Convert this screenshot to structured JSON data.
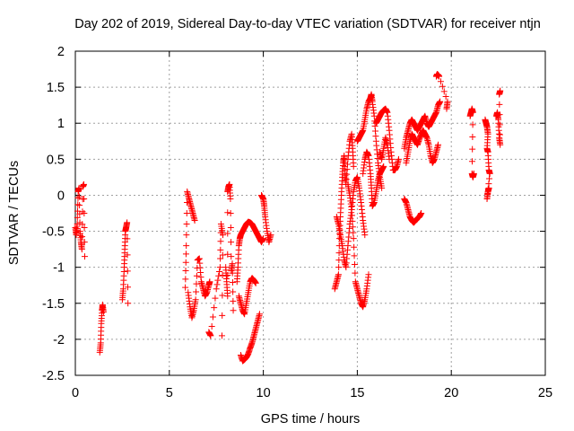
{
  "chart_data": {
    "type": "scatter",
    "title": "Day 202 of 2019, Sidereal Day-to-day VTEC variation (SDTVAR) for receiver ntjn",
    "xlabel": "GPS time / hours",
    "ylabel": "SDTVAR / TECUs",
    "xlim": [
      0,
      25
    ],
    "ylim": [
      -2.5,
      2
    ],
    "xticks": [
      "0",
      "5",
      "10",
      "15",
      "20",
      "25"
    ],
    "yticks": [
      "-2.5",
      "-2",
      "-1.5",
      "-1",
      "-0.5",
      "0",
      "0.5",
      "1",
      "1.5",
      "2"
    ],
    "grid": true,
    "marker": "plus",
    "color": "#ff0000",
    "segments": [
      [
        [
          0.0,
          -0.45
        ],
        [
          0.05,
          -0.55
        ],
        [
          0.1,
          -0.4
        ],
        [
          0.15,
          0.05
        ],
        [
          0.2,
          0.1
        ],
        [
          0.25,
          -0.5
        ],
        [
          0.3,
          -0.65
        ],
        [
          0.35,
          -0.75
        ],
        [
          0.4,
          0.12
        ],
        [
          0.45,
          0.15
        ],
        [
          0.5,
          -0.85
        ]
      ],
      [
        [
          1.3,
          -2.18
        ],
        [
          1.35,
          -2.05
        ],
        [
          1.38,
          -1.78
        ],
        [
          1.42,
          -1.6
        ],
        [
          1.45,
          -1.52
        ],
        [
          1.5,
          -1.62
        ]
      ],
      [
        [
          2.5,
          -1.45
        ],
        [
          2.55,
          -1.3
        ],
        [
          2.6,
          -1.0
        ],
        [
          2.63,
          -0.75
        ],
        [
          2.66,
          -0.5
        ],
        [
          2.7,
          -0.45
        ],
        [
          2.75,
          -0.38
        ],
        [
          2.8,
          -1.5
        ]
      ],
      [
        [
          5.85,
          -1.28
        ],
        [
          5.9,
          -0.7
        ],
        [
          5.95,
          0.05
        ],
        [
          6.05,
          -0.05
        ],
        [
          6.15,
          -0.15
        ],
        [
          6.25,
          -0.25
        ],
        [
          6.35,
          -0.35
        ]
      ],
      [
        [
          6.0,
          -1.35
        ],
        [
          6.1,
          -1.55
        ],
        [
          6.2,
          -1.7
        ],
        [
          6.3,
          -1.6
        ],
        [
          6.4,
          -1.45
        ],
        [
          6.5,
          -0.9
        ],
        [
          6.6,
          -0.88
        ],
        [
          6.7,
          -1.2
        ],
        [
          6.8,
          -1.3
        ],
        [
          6.9,
          -1.4
        ],
        [
          7.0,
          -1.35
        ],
        [
          7.1,
          -1.25
        ],
        [
          7.15,
          -1.2
        ]
      ],
      [
        [
          7.1,
          -1.9
        ],
        [
          7.2,
          -1.95
        ],
        [
          7.5,
          -1.3
        ],
        [
          7.7,
          -1.0
        ],
        [
          7.75,
          -0.4
        ],
        [
          7.85,
          -0.55
        ],
        [
          7.8,
          -1.95
        ]
      ],
      [
        [
          8.0,
          -1.0
        ],
        [
          8.05,
          -1.2
        ],
        [
          8.1,
          -1.4
        ],
        [
          8.1,
          0.05
        ],
        [
          8.15,
          0.12
        ],
        [
          8.2,
          0.15
        ],
        [
          8.25,
          -0.05
        ],
        [
          8.3,
          -1.05
        ],
        [
          8.35,
          -0.95
        ],
        [
          8.4,
          -1.6
        ]
      ],
      [
        [
          8.6,
          -1.2
        ],
        [
          8.65,
          -1.0
        ],
        [
          8.7,
          -0.7
        ],
        [
          8.75,
          -0.6
        ],
        [
          8.8,
          -0.55
        ],
        [
          8.9,
          -0.5
        ],
        [
          9.0,
          -0.45
        ],
        [
          9.1,
          -0.4
        ],
        [
          9.2,
          -0.37
        ],
        [
          9.3,
          -0.38
        ],
        [
          9.4,
          -0.4
        ],
        [
          9.5,
          -0.45
        ],
        [
          9.6,
          -0.5
        ],
        [
          9.7,
          -0.55
        ],
        [
          9.8,
          -0.6
        ],
        [
          9.9,
          -0.65
        ],
        [
          10.0,
          -0.6
        ]
      ],
      [
        [
          8.7,
          -1.4
        ],
        [
          8.8,
          -1.5
        ],
        [
          8.9,
          -1.6
        ],
        [
          9.0,
          -1.65
        ],
        [
          9.1,
          -1.5
        ],
        [
          9.2,
          -1.35
        ],
        [
          9.3,
          -1.2
        ],
        [
          9.4,
          -1.15
        ],
        [
          9.5,
          -1.18
        ],
        [
          9.6,
          -1.22
        ]
      ],
      [
        [
          8.8,
          -2.22
        ],
        [
          8.9,
          -2.3
        ],
        [
          9.0,
          -2.28
        ],
        [
          9.1,
          -2.25
        ],
        [
          9.2,
          -2.2
        ],
        [
          9.3,
          -2.12
        ],
        [
          9.4,
          -2.05
        ],
        [
          9.5,
          -1.95
        ],
        [
          9.6,
          -1.85
        ],
        [
          9.7,
          -1.75
        ],
        [
          9.8,
          -1.65
        ]
      ],
      [
        [
          9.9,
          0.0
        ],
        [
          10.0,
          -0.05
        ],
        [
          10.05,
          -0.15
        ],
        [
          10.1,
          -0.3
        ],
        [
          10.2,
          -0.5
        ],
        [
          10.3,
          -0.65
        ],
        [
          10.4,
          -0.55
        ]
      ],
      [
        [
          13.8,
          -1.3
        ],
        [
          13.9,
          -1.2
        ],
        [
          14.0,
          -1.1
        ],
        [
          14.05,
          -0.6
        ],
        [
          14.1,
          -0.3
        ],
        [
          14.15,
          0.0
        ],
        [
          14.2,
          0.25
        ],
        [
          14.25,
          0.45
        ],
        [
          14.3,
          0.55
        ],
        [
          14.35,
          0.3
        ],
        [
          14.4,
          0.15
        ],
        [
          14.5,
          0.5
        ],
        [
          14.6,
          0.75
        ],
        [
          14.7,
          0.85
        ],
        [
          14.75,
          0.65
        ],
        [
          14.8,
          0.4
        ]
      ],
      [
        [
          13.9,
          -0.3
        ],
        [
          14.0,
          -0.4
        ],
        [
          14.1,
          -0.55
        ],
        [
          14.2,
          -0.7
        ],
        [
          14.3,
          -0.9
        ],
        [
          14.4,
          -1.0
        ],
        [
          14.5,
          -0.7
        ],
        [
          14.6,
          -0.4
        ],
        [
          14.7,
          -0.2
        ],
        [
          14.8,
          0.05
        ],
        [
          14.9,
          0.2
        ],
        [
          15.0,
          0.25
        ],
        [
          15.1,
          0.1
        ],
        [
          15.2,
          -0.1
        ],
        [
          15.3,
          -0.35
        ],
        [
          15.4,
          -0.55
        ]
      ],
      [
        [
          14.5,
          0.15
        ],
        [
          14.6,
          0.0
        ],
        [
          14.7,
          -0.2
        ],
        [
          14.8,
          -0.6
        ],
        [
          14.9,
          -1.2
        ],
        [
          15.0,
          -1.3
        ],
        [
          15.1,
          -1.4
        ],
        [
          15.2,
          -1.5
        ],
        [
          15.3,
          -1.55
        ],
        [
          15.4,
          -1.45
        ],
        [
          15.5,
          -1.3
        ],
        [
          15.6,
          -1.1
        ]
      ],
      [
        [
          15.0,
          0.75
        ],
        [
          15.1,
          0.8
        ],
        [
          15.2,
          0.85
        ],
        [
          15.3,
          0.9
        ],
        [
          15.4,
          1.05
        ],
        [
          15.5,
          1.2
        ],
        [
          15.6,
          1.3
        ],
        [
          15.7,
          1.35
        ],
        [
          15.75,
          1.4
        ],
        [
          15.8,
          1.3
        ],
        [
          15.9,
          1.1
        ],
        [
          16.0,
          0.75
        ],
        [
          16.1,
          0.45
        ],
        [
          16.2,
          0.25
        ],
        [
          16.3,
          0.1
        ]
      ],
      [
        [
          15.3,
          0.3
        ],
        [
          15.4,
          0.5
        ],
        [
          15.5,
          0.6
        ],
        [
          15.6,
          0.55
        ],
        [
          15.7,
          0.3
        ],
        [
          15.75,
          0.1
        ],
        [
          15.8,
          -0.15
        ],
        [
          15.9,
          -0.1
        ],
        [
          16.0,
          0.05
        ],
        [
          16.1,
          0.2
        ],
        [
          16.2,
          0.3
        ],
        [
          16.3,
          0.35
        ],
        [
          16.4,
          0.4
        ]
      ],
      [
        [
          16.0,
          1.0
        ],
        [
          16.1,
          1.05
        ],
        [
          16.2,
          1.1
        ],
        [
          16.3,
          1.15
        ],
        [
          16.4,
          1.18
        ],
        [
          16.5,
          1.2
        ],
        [
          16.6,
          1.15
        ],
        [
          16.7,
          0.9
        ],
        [
          16.8,
          0.6
        ],
        [
          16.9,
          0.35
        ],
        [
          17.0,
          0.35
        ],
        [
          17.1,
          0.4
        ],
        [
          17.2,
          0.5
        ]
      ],
      [
        [
          16.2,
          0.6
        ],
        [
          16.3,
          0.5
        ],
        [
          16.4,
          0.65
        ],
        [
          16.5,
          0.8
        ],
        [
          16.6,
          0.7
        ],
        [
          16.7,
          0.5
        ]
      ],
      [
        [
          17.5,
          0.65
        ],
        [
          17.6,
          0.8
        ],
        [
          17.7,
          0.9
        ],
        [
          17.8,
          1.0
        ],
        [
          17.9,
          1.05
        ],
        [
          18.0,
          1.0
        ],
        [
          18.1,
          0.95
        ],
        [
          18.2,
          0.9
        ],
        [
          18.3,
          0.95
        ],
        [
          18.4,
          1.0
        ],
        [
          18.5,
          1.05
        ],
        [
          18.6,
          1.1
        ],
        [
          18.7,
          1.0
        ],
        [
          18.8,
          0.95
        ],
        [
          18.9,
          1.0
        ],
        [
          19.0,
          1.05
        ],
        [
          19.1,
          1.1
        ],
        [
          19.2,
          1.15
        ],
        [
          19.3,
          1.25
        ],
        [
          19.4,
          1.3
        ]
      ],
      [
        [
          17.6,
          0.45
        ],
        [
          17.7,
          0.6
        ],
        [
          17.8,
          0.75
        ],
        [
          17.9,
          0.85
        ],
        [
          18.0,
          0.8
        ],
        [
          18.1,
          0.75
        ],
        [
          18.2,
          0.7
        ],
        [
          18.3,
          0.78
        ],
        [
          18.4,
          0.85
        ],
        [
          18.5,
          0.9
        ],
        [
          18.6,
          0.85
        ],
        [
          18.7,
          0.8
        ],
        [
          18.8,
          0.7
        ],
        [
          18.9,
          0.55
        ],
        [
          19.0,
          0.45
        ],
        [
          19.1,
          0.5
        ],
        [
          19.2,
          0.6
        ],
        [
          19.3,
          0.7
        ]
      ],
      [
        [
          17.5,
          -0.05
        ],
        [
          17.6,
          -0.1
        ],
        [
          17.7,
          -0.2
        ],
        [
          17.8,
          -0.3
        ],
        [
          17.9,
          -0.35
        ],
        [
          18.0,
          -0.38
        ],
        [
          18.1,
          -0.35
        ],
        [
          18.2,
          -0.32
        ],
        [
          18.3,
          -0.3
        ],
        [
          18.4,
          -0.25
        ]
      ],
      [
        [
          19.2,
          1.65
        ],
        [
          19.25,
          1.68
        ],
        [
          19.3,
          1.67
        ],
        [
          19.35,
          1.65
        ],
        [
          19.8,
          1.3
        ],
        [
          19.75,
          1.2
        ]
      ],
      [
        [
          21.0,
          1.1
        ],
        [
          21.05,
          1.15
        ],
        [
          21.1,
          1.2
        ],
        [
          21.15,
          1.15
        ],
        [
          21.1,
          0.3
        ],
        [
          21.15,
          0.25
        ],
        [
          21.2,
          0.3
        ]
      ],
      [
        [
          21.8,
          1.05
        ],
        [
          21.85,
          1.0
        ],
        [
          21.9,
          0.95
        ],
        [
          21.95,
          0.85
        ],
        [
          21.9,
          0.65
        ],
        [
          21.95,
          0.6
        ],
        [
          22.0,
          0.35
        ],
        [
          22.05,
          0.3
        ],
        [
          21.9,
          -0.05
        ],
        [
          21.95,
          0.05
        ],
        [
          22.0,
          0.1
        ]
      ],
      [
        [
          22.4,
          1.1
        ],
        [
          22.45,
          1.15
        ],
        [
          22.5,
          1.05
        ],
        [
          22.55,
          0.8
        ],
        [
          22.6,
          0.7
        ],
        [
          22.55,
          1.4
        ],
        [
          22.6,
          1.45
        ]
      ]
    ]
  }
}
